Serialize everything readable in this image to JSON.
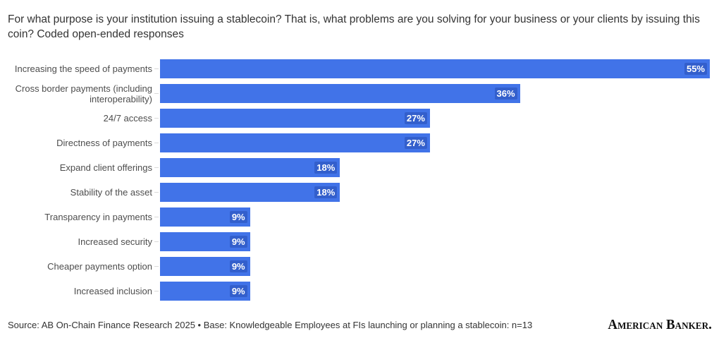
{
  "title": "For what purpose is your institution issuing a stablecoin? That is, what problems are you solving for your business or your clients by issuing this coin? Coded open-ended responses",
  "chart_data": {
    "type": "bar",
    "orientation": "horizontal",
    "title": "For what purpose is your institution issuing a stablecoin? That is, what problems are you solving for your business or your clients by issuing this coin? Coded open-ended responses",
    "categories": [
      "Increasing the speed of payments",
      "Cross border payments (including interoperability)",
      "24/7 access",
      "Directness of payments",
      "Expand client offerings",
      "Stability of the asset",
      "Transparency in payments",
      "Increased security",
      "Cheaper payments option",
      "Increased inclusion"
    ],
    "values": [
      55,
      36,
      27,
      27,
      18,
      18,
      9,
      9,
      9,
      9
    ],
    "value_labels": [
      "55%",
      "36%",
      "27%",
      "27%",
      "18%",
      "18%",
      "9%",
      "9%",
      "9%",
      "9%"
    ],
    "xlabel": "",
    "ylabel": "",
    "xlim": [
      0,
      55
    ],
    "grid": false,
    "legend": "none",
    "bar_color": "#4173e8",
    "value_label_color": "#ffffff",
    "category_label_color": "#4d4d4d"
  },
  "footer": {
    "source": "Source: AB On-Chain Finance Research 2025 • Base: Knowledgeable Employees at FIs launching or planning a stablecoin: n=13",
    "logo": "American Banker."
  }
}
